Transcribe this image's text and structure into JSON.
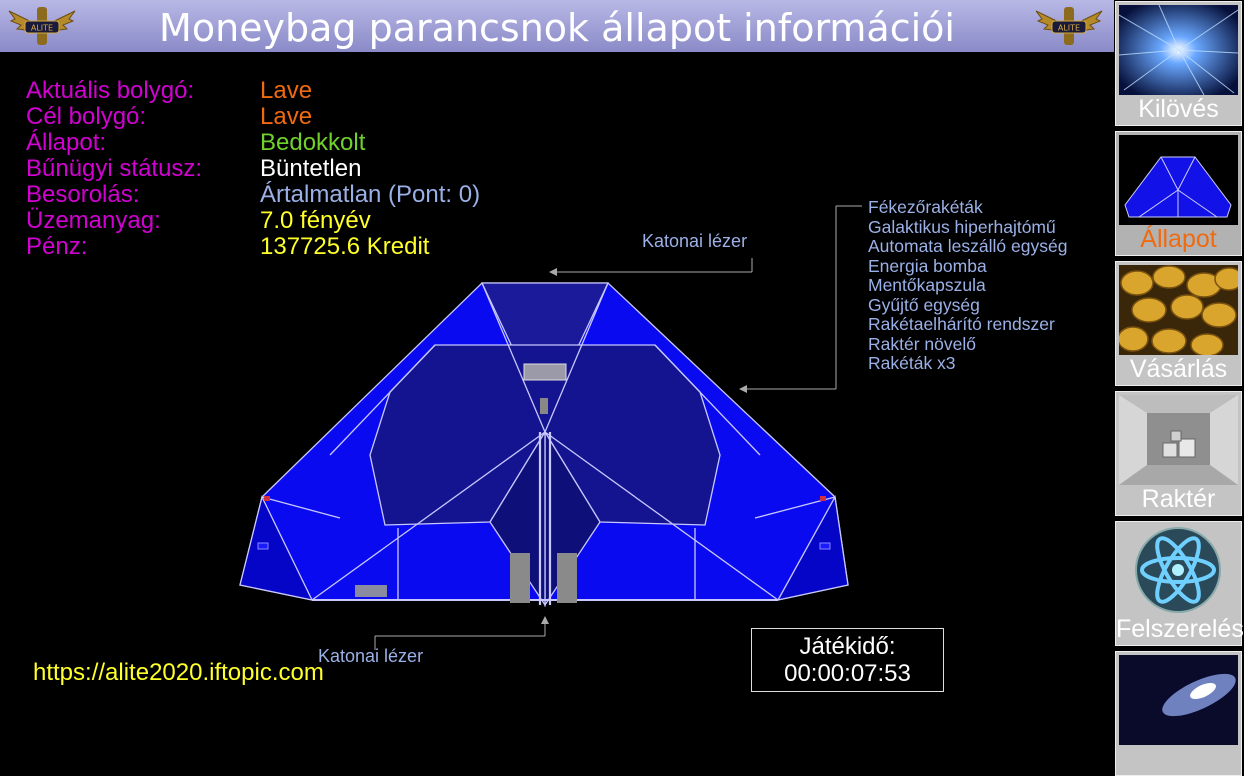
{
  "header": {
    "title": "Moneybag parancsnok állapot információi",
    "logo_icon": "alite-winged-emblem"
  },
  "status": [
    {
      "label": "Aktuális bolygó:",
      "value": "Lave",
      "color": "#f06a10"
    },
    {
      "label": "Cél bolygó:",
      "value": "Lave",
      "color": "#f06a10"
    },
    {
      "label": "Állapot:",
      "value": "Bedokkolt",
      "color": "#6fd12a"
    },
    {
      "label": "Bűnügyi státusz:",
      "value": "Büntetlen",
      "color": "#ffffff"
    },
    {
      "label": "Besorolás:",
      "value": "Ártalmatlan  (Pont: 0)",
      "color": "#9bb0e6"
    },
    {
      "label": "Üzemanyag:",
      "value": "7.0 fényév",
      "color": "#ffff2a"
    },
    {
      "label": "Pénz:",
      "value": "137725.6 Kredit",
      "color": "#ffff2a"
    }
  ],
  "equipment": [
    "Fékezőrakéták",
    "Galaktikus hiperhajtómű",
    "Automata leszálló egység",
    "Energia bomba",
    "Mentőkapszula",
    "Gyűjtő egység",
    "Rakétaelhárító rendszer",
    "Raktér növelő",
    "Rakéták x3"
  ],
  "lasers": {
    "front": "Katonai lézer",
    "rear": "Katonai lézer"
  },
  "footer": {
    "url": "https://alite2020.iftopic.com",
    "playtime_label": "Játékidő:",
    "playtime_value": "00:00:07:53"
  },
  "sidebar": [
    {
      "label": "Kilövés",
      "icon": "hyperspace-icon",
      "active": false
    },
    {
      "label": "Állapot",
      "icon": "ship-status-icon",
      "active": true
    },
    {
      "label": "Vásárlás",
      "icon": "gold-coins-icon",
      "active": false
    },
    {
      "label": "Raktér",
      "icon": "cargo-hold-icon",
      "active": false
    },
    {
      "label": "Felszerelés",
      "icon": "atom-equipment-icon",
      "active": false
    },
    {
      "label": "",
      "icon": "galaxy-icon",
      "active": false
    }
  ],
  "colors": {
    "label": "#d200d2",
    "ship_hull": "#0a0af0",
    "ship_lines": "#c8c8ff",
    "callout": "#9bb0e6"
  }
}
